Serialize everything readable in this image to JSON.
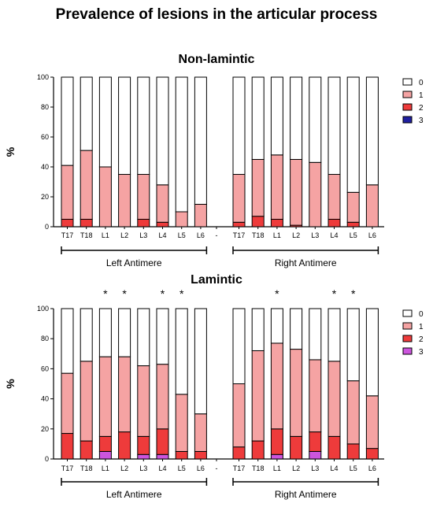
{
  "figure_title": "Prevalence of lesions in the articular process",
  "colors": {
    "0": "#ffffff",
    "1": "#f5a3a3",
    "2": "#ee3b3b",
    "3_nonlamintic": "#1f1fa0",
    "3_lamintic": "#cc55dd"
  },
  "chart_data": [
    {
      "type": "bar",
      "stacked": true,
      "title": "Non-lamintic",
      "ylabel": "%",
      "ylim": [
        0,
        100
      ],
      "yticks": [
        0,
        20,
        40,
        60,
        80,
        100
      ],
      "categories": [
        "T17",
        "T18",
        "L1",
        "L2",
        "L3",
        "L4",
        "L5",
        "L6",
        "-",
        "T17",
        "T18",
        "L1",
        "L2",
        "L3",
        "L4",
        "L5",
        "L6"
      ],
      "series": [
        {
          "name": "3",
          "values": [
            0,
            0,
            0,
            0,
            0,
            0,
            0,
            0,
            null,
            0,
            0,
            0,
            0,
            0,
            0,
            0,
            0
          ]
        },
        {
          "name": "2",
          "values": [
            5,
            5,
            0,
            0,
            5,
            3,
            0,
            0,
            null,
            3,
            7,
            5,
            1,
            0,
            5,
            3,
            0
          ]
        },
        {
          "name": "1",
          "values": [
            36,
            46,
            40,
            35,
            30,
            25,
            10,
            15,
            null,
            32,
            38,
            43,
            44,
            43,
            30,
            20,
            28
          ]
        },
        {
          "name": "0",
          "values": [
            59,
            49,
            60,
            65,
            65,
            72,
            90,
            85,
            null,
            65,
            55,
            52,
            55,
            57,
            65,
            77,
            72
          ]
        }
      ],
      "legend": [
        "0",
        "1",
        "2",
        "3"
      ],
      "legend_position": "right",
      "groups": [
        {
          "label": "Left Antimere",
          "range": [
            0,
            7
          ]
        },
        {
          "label": "Right Antimere",
          "range": [
            9,
            16
          ]
        }
      ],
      "significance": [
        "",
        "",
        "",
        "",
        "",
        "",
        "",
        "",
        "",
        "",
        "",
        "",
        "",
        "",
        "",
        "",
        ""
      ]
    },
    {
      "type": "bar",
      "stacked": true,
      "title": "Lamintic",
      "ylabel": "%",
      "ylim": [
        0,
        100
      ],
      "yticks": [
        0,
        20,
        40,
        60,
        80,
        100
      ],
      "categories": [
        "T17",
        "T18",
        "L1",
        "L2",
        "L3",
        "L4",
        "L5",
        "L6",
        "-",
        "T17",
        "T18",
        "L1",
        "L2",
        "L3",
        "L4",
        "L5",
        "L6"
      ],
      "series": [
        {
          "name": "3",
          "values": [
            0,
            0,
            5,
            0,
            3,
            3,
            0,
            0,
            null,
            0,
            0,
            3,
            0,
            5,
            0,
            0,
            0
          ]
        },
        {
          "name": "2",
          "values": [
            17,
            12,
            10,
            18,
            12,
            17,
            5,
            5,
            null,
            8,
            12,
            17,
            15,
            13,
            15,
            10,
            7
          ]
        },
        {
          "name": "1",
          "values": [
            40,
            53,
            53,
            50,
            47,
            43,
            38,
            25,
            null,
            42,
            60,
            57,
            58,
            48,
            50,
            42,
            35
          ]
        },
        {
          "name": "0",
          "values": [
            43,
            35,
            32,
            32,
            38,
            37,
            57,
            70,
            null,
            50,
            28,
            23,
            27,
            34,
            35,
            48,
            58
          ]
        }
      ],
      "legend": [
        "0",
        "1",
        "2",
        "3"
      ],
      "legend_position": "right",
      "groups": [
        {
          "label": "Left Antimere",
          "range": [
            0,
            7
          ]
        },
        {
          "label": "Right Antimere",
          "range": [
            9,
            16
          ]
        }
      ],
      "significance": [
        "",
        "",
        "*",
        "*",
        "",
        "*",
        "*",
        "",
        "",
        "",
        "",
        "*",
        "",
        "",
        "*",
        "*",
        ""
      ]
    }
  ]
}
